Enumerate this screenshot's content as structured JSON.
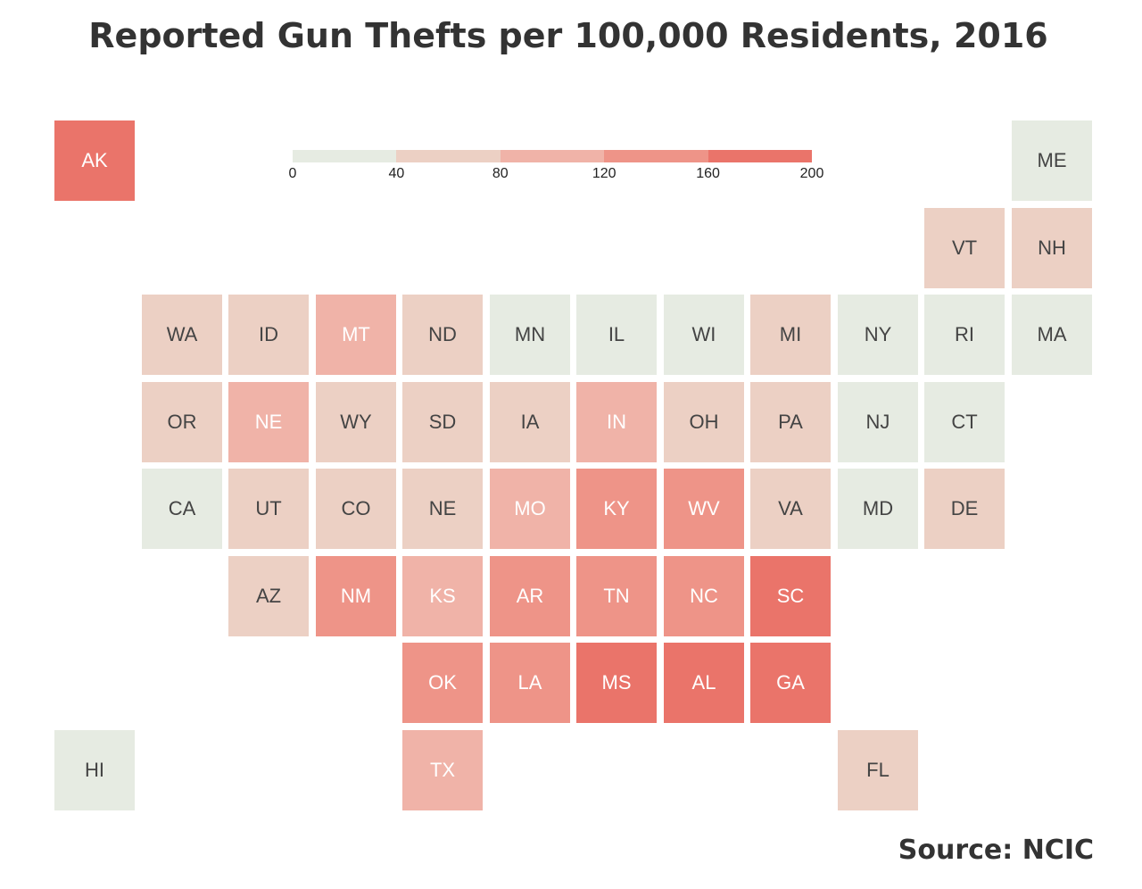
{
  "title": "Reported Gun Thefts per 100,000 Residents, 2016",
  "source": "Source: NCIC",
  "chart_data": {
    "type": "heatmap",
    "title": "Reported Gun Thefts per 100,000 Residents, 2016",
    "legend": {
      "ticks": [
        "0",
        "40",
        "80",
        "120",
        "160",
        "200"
      ],
      "bins": [
        {
          "min": 0,
          "max": 40,
          "color": "#e6ebe2"
        },
        {
          "min": 40,
          "max": 80,
          "color": "#ecd0c4"
        },
        {
          "min": 80,
          "max": 120,
          "color": "#f0b3a8"
        },
        {
          "min": 120,
          "max": 160,
          "color": "#ee9488"
        },
        {
          "min": 160,
          "max": 200,
          "color": "#ea746a"
        }
      ]
    },
    "states": [
      {
        "abbr": "AK",
        "bin": 4,
        "row": 0,
        "col": 0
      },
      {
        "abbr": "ME",
        "bin": 0,
        "row": 0,
        "col": 11
      },
      {
        "abbr": "VT",
        "bin": 1,
        "row": 1,
        "col": 10
      },
      {
        "abbr": "NH",
        "bin": 1,
        "row": 1,
        "col": 11
      },
      {
        "abbr": "WA",
        "bin": 1,
        "row": 2,
        "col": 1
      },
      {
        "abbr": "ID",
        "bin": 1,
        "row": 2,
        "col": 2
      },
      {
        "abbr": "MT",
        "bin": 2,
        "row": 2,
        "col": 3
      },
      {
        "abbr": "ND",
        "bin": 1,
        "row": 2,
        "col": 4
      },
      {
        "abbr": "MN",
        "bin": 0,
        "row": 2,
        "col": 5
      },
      {
        "abbr": "IL",
        "bin": 0,
        "row": 2,
        "col": 6
      },
      {
        "abbr": "WI",
        "bin": 0,
        "row": 2,
        "col": 7
      },
      {
        "abbr": "MI",
        "bin": 1,
        "row": 2,
        "col": 8
      },
      {
        "abbr": "NY",
        "bin": 0,
        "row": 2,
        "col": 9
      },
      {
        "abbr": "RI",
        "bin": 0,
        "row": 2,
        "col": 10
      },
      {
        "abbr": "MA",
        "bin": 0,
        "row": 2,
        "col": 11
      },
      {
        "abbr": "OR",
        "bin": 1,
        "row": 3,
        "col": 1
      },
      {
        "abbr": "NE",
        "bin": 2,
        "row": 3,
        "col": 2
      },
      {
        "abbr": "WY",
        "bin": 1,
        "row": 3,
        "col": 3
      },
      {
        "abbr": "SD",
        "bin": 1,
        "row": 3,
        "col": 4
      },
      {
        "abbr": "IA",
        "bin": 1,
        "row": 3,
        "col": 5
      },
      {
        "abbr": "IN",
        "bin": 2,
        "row": 3,
        "col": 6
      },
      {
        "abbr": "OH",
        "bin": 1,
        "row": 3,
        "col": 7
      },
      {
        "abbr": "PA",
        "bin": 1,
        "row": 3,
        "col": 8
      },
      {
        "abbr": "NJ",
        "bin": 0,
        "row": 3,
        "col": 9
      },
      {
        "abbr": "CT",
        "bin": 0,
        "row": 3,
        "col": 10
      },
      {
        "abbr": "CA",
        "bin": 0,
        "row": 4,
        "col": 1
      },
      {
        "abbr": "UT",
        "bin": 1,
        "row": 4,
        "col": 2
      },
      {
        "abbr": "CO",
        "bin": 1,
        "row": 4,
        "col": 3
      },
      {
        "abbr": "NE",
        "bin": 1,
        "row": 4,
        "col": 4
      },
      {
        "abbr": "MO",
        "bin": 2,
        "row": 4,
        "col": 5
      },
      {
        "abbr": "KY",
        "bin": 3,
        "row": 4,
        "col": 6
      },
      {
        "abbr": "WV",
        "bin": 3,
        "row": 4,
        "col": 7
      },
      {
        "abbr": "VA",
        "bin": 1,
        "row": 4,
        "col": 8
      },
      {
        "abbr": "MD",
        "bin": 0,
        "row": 4,
        "col": 9
      },
      {
        "abbr": "DE",
        "bin": 1,
        "row": 4,
        "col": 10
      },
      {
        "abbr": "AZ",
        "bin": 1,
        "row": 5,
        "col": 2
      },
      {
        "abbr": "NM",
        "bin": 3,
        "row": 5,
        "col": 3
      },
      {
        "abbr": "KS",
        "bin": 2,
        "row": 5,
        "col": 4
      },
      {
        "abbr": "AR",
        "bin": 3,
        "row": 5,
        "col": 5
      },
      {
        "abbr": "TN",
        "bin": 3,
        "row": 5,
        "col": 6
      },
      {
        "abbr": "NC",
        "bin": 3,
        "row": 5,
        "col": 7
      },
      {
        "abbr": "SC",
        "bin": 4,
        "row": 5,
        "col": 8
      },
      {
        "abbr": "OK",
        "bin": 3,
        "row": 6,
        "col": 4
      },
      {
        "abbr": "LA",
        "bin": 3,
        "row": 6,
        "col": 5
      },
      {
        "abbr": "MS",
        "bin": 4,
        "row": 6,
        "col": 6
      },
      {
        "abbr": "AL",
        "bin": 4,
        "row": 6,
        "col": 7
      },
      {
        "abbr": "GA",
        "bin": 4,
        "row": 6,
        "col": 8
      },
      {
        "abbr": "HI",
        "bin": 0,
        "row": 7,
        "col": 0
      },
      {
        "abbr": "TX",
        "bin": 2,
        "row": 7,
        "col": 4
      },
      {
        "abbr": "FL",
        "bin": 1,
        "row": 7,
        "col": 9
      }
    ]
  }
}
